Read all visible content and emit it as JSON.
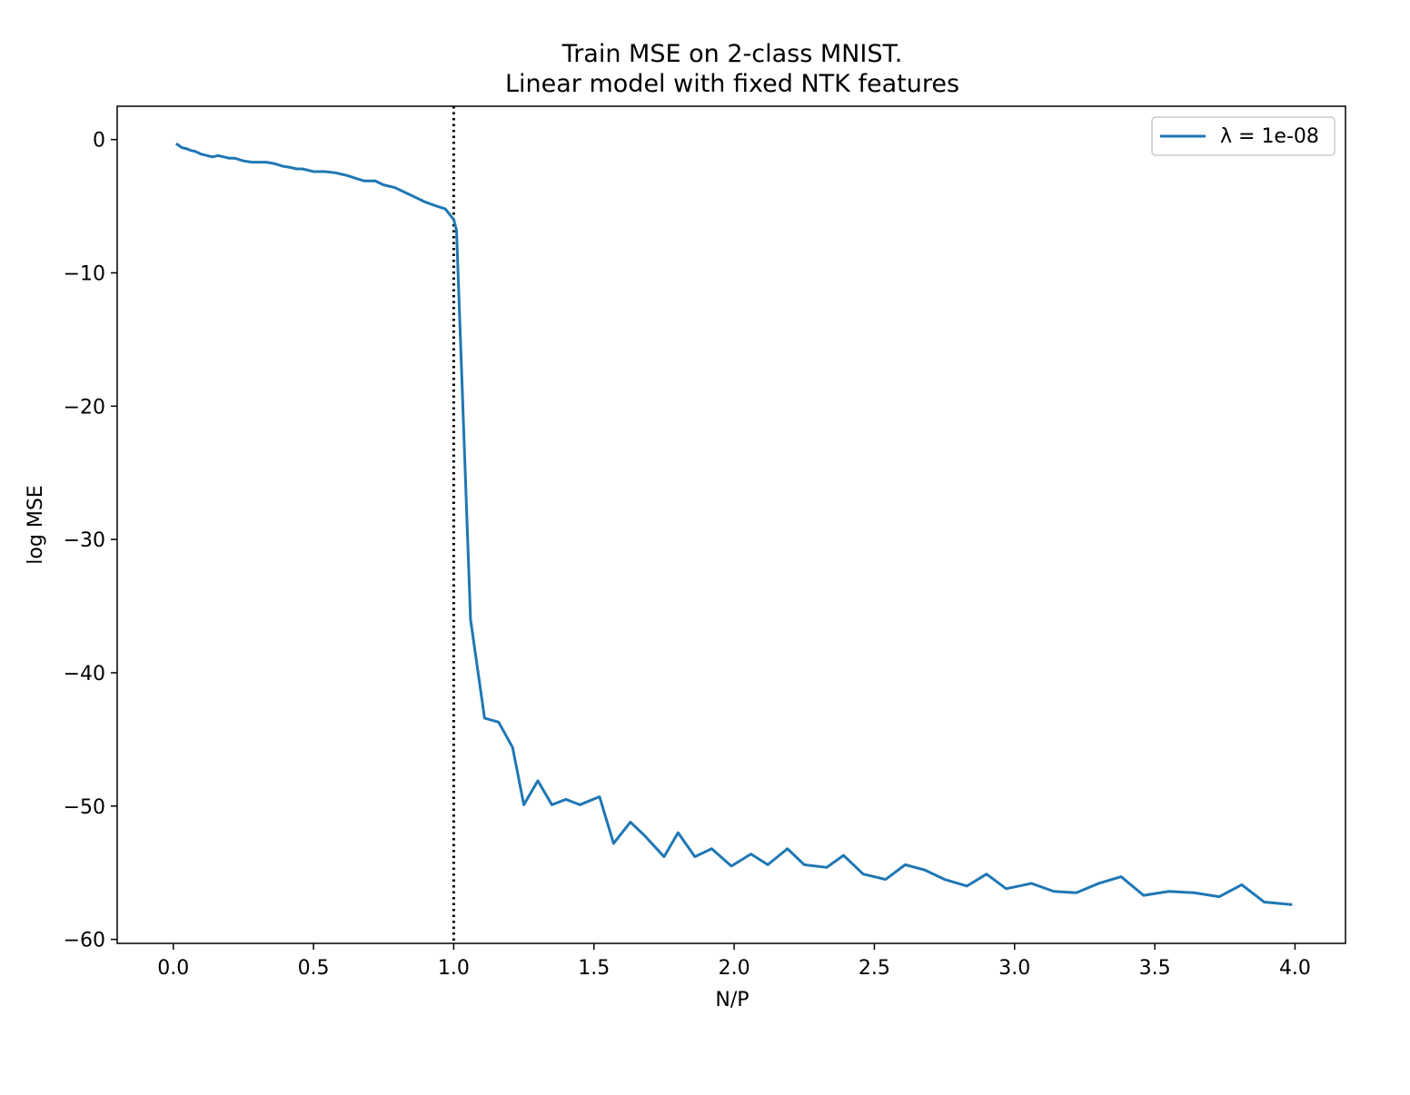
{
  "chart_data": {
    "type": "line",
    "title": "Train MSE on 2-class MNIST.",
    "subtitle": "Linear model with fixed NTK features",
    "xlabel": "N/P",
    "ylabel": "log MSE",
    "xlim": [
      -0.2,
      4.18
    ],
    "ylim": [
      -60.3,
      2.5
    ],
    "xticks": [
      0.0,
      0.5,
      1.0,
      1.5,
      2.0,
      2.5,
      3.0,
      3.5,
      4.0
    ],
    "xtick_labels": [
      "0.0",
      "0.5",
      "1.0",
      "1.5",
      "2.0",
      "2.5",
      "3.0",
      "3.5",
      "4.0"
    ],
    "yticks": [
      0,
      -10,
      -20,
      -30,
      -40,
      -50,
      -60
    ],
    "ytick_labels": [
      "0",
      "−10",
      "−20",
      "−30",
      "−40",
      "−50",
      "−60"
    ],
    "grid": false,
    "legend_position": "top-right",
    "reference_line": {
      "x": 1.0,
      "style": "dotted",
      "color": "#000000"
    },
    "series": [
      {
        "name": "λ = 1e-08",
        "color": "#1f77b4",
        "x": [
          0.01,
          0.03,
          0.05,
          0.06,
          0.08,
          0.1,
          0.12,
          0.14,
          0.16,
          0.18,
          0.2,
          0.22,
          0.25,
          0.28,
          0.3,
          0.33,
          0.36,
          0.39,
          0.42,
          0.44,
          0.46,
          0.5,
          0.54,
          0.58,
          0.62,
          0.65,
          0.68,
          0.72,
          0.75,
          0.79,
          0.82,
          0.86,
          0.9,
          0.94,
          0.97,
          1.0,
          1.01,
          1.06,
          1.11,
          1.16,
          1.21,
          1.25,
          1.3,
          1.35,
          1.4,
          1.45,
          1.52,
          1.57,
          1.63,
          1.68,
          1.75,
          1.8,
          1.86,
          1.92,
          1.99,
          2.06,
          2.12,
          2.19,
          2.25,
          2.33,
          2.39,
          2.46,
          2.54,
          2.61,
          2.68,
          2.75,
          2.83,
          2.9,
          2.97,
          3.06,
          3.14,
          3.22,
          3.3,
          3.38,
          3.46,
          3.55,
          3.64,
          3.73,
          3.81,
          3.89,
          3.99
        ],
        "y": [
          -0.3,
          -0.6,
          -0.7,
          -0.8,
          -0.9,
          -1.1,
          -1.2,
          -1.3,
          -1.2,
          -1.3,
          -1.4,
          -1.4,
          -1.6,
          -1.7,
          -1.7,
          -1.7,
          -1.8,
          -2.0,
          -2.1,
          -2.2,
          -2.2,
          -2.4,
          -2.4,
          -2.5,
          -2.7,
          -2.9,
          -3.1,
          -3.1,
          -3.4,
          -3.6,
          -3.9,
          -4.3,
          -4.7,
          -5.0,
          -5.2,
          -6.0,
          -6.8,
          -36.0,
          -43.4,
          -43.7,
          -45.6,
          -49.9,
          -48.1,
          -49.9,
          -49.5,
          -49.9,
          -49.3,
          -52.8,
          -51.2,
          -52.2,
          -53.8,
          -52.0,
          -53.8,
          -53.2,
          -54.5,
          -53.6,
          -54.4,
          -53.2,
          -54.4,
          -54.6,
          -53.7,
          -55.1,
          -55.5,
          -54.4,
          -54.8,
          -55.5,
          -56.0,
          -55.1,
          -56.2,
          -55.8,
          -56.4,
          -56.5,
          -55.8,
          -55.3,
          -56.7,
          -56.4,
          -56.5,
          -56.8,
          -55.9,
          -57.2,
          -57.4
        ]
      }
    ]
  }
}
